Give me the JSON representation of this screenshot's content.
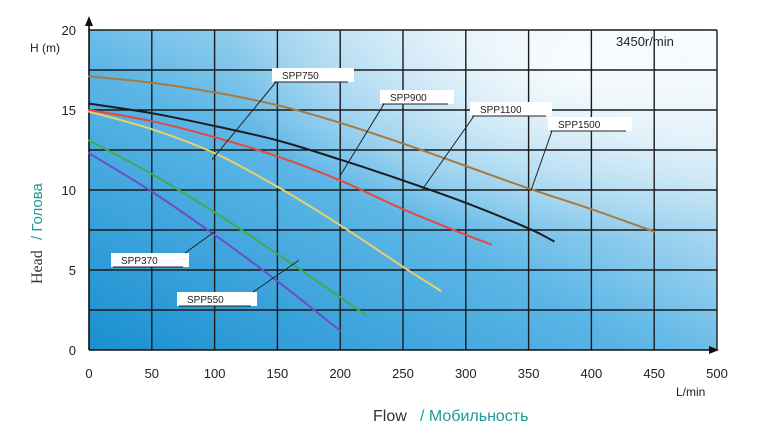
{
  "chart_data": {
    "type": "line",
    "title": "",
    "speed_label": "3450r/min",
    "y_axis": {
      "label_en": "Head",
      "label_ru": "/ Голова",
      "unit": "H (m)",
      "range": [
        0,
        20
      ],
      "ticks": [
        "0",
        "5",
        "10",
        "15",
        "20"
      ]
    },
    "x_axis": {
      "label_en": "Flow",
      "label_ru": "/ Мобильность",
      "unit": "L/min",
      "range": [
        0,
        500
      ],
      "ticks": [
        "0",
        "50",
        "100",
        "150",
        "200",
        "250",
        "300",
        "350",
        "400",
        "450",
        "500"
      ]
    },
    "grid": true,
    "series": [
      {
        "name": "SPP370",
        "color": "#6b4fc8",
        "x": [
          0,
          50,
          100,
          150,
          200
        ],
        "y": [
          12.3,
          9.9,
          7.2,
          4.3,
          1.2
        ]
      },
      {
        "name": "SPP550",
        "color": "#3cae4e",
        "x": [
          0,
          50,
          100,
          150,
          200,
          220
        ],
        "y": [
          13.1,
          11.0,
          8.6,
          6.0,
          3.3,
          2.2
        ]
      },
      {
        "name": "SPP750",
        "color": "#e6d16a",
        "x": [
          0,
          50,
          100,
          150,
          200,
          250,
          280
        ],
        "y": [
          14.9,
          13.8,
          12.3,
          10.2,
          7.8,
          5.2,
          3.7
        ]
      },
      {
        "name": "SPP900",
        "color": "#e8473d",
        "x": [
          0,
          50,
          100,
          150,
          200,
          250,
          300,
          320
        ],
        "y": [
          15.0,
          14.3,
          13.3,
          12.1,
          10.6,
          8.8,
          7.2,
          6.6
        ]
      },
      {
        "name": "SPP1100",
        "color": "#1c1c22",
        "x": [
          0,
          50,
          100,
          150,
          200,
          250,
          300,
          350,
          370
        ],
        "y": [
          15.4,
          14.8,
          14.0,
          13.1,
          11.9,
          10.6,
          9.2,
          7.6,
          6.8
        ]
      },
      {
        "name": "SPP1500",
        "color": "#a87a3e",
        "x": [
          0,
          50,
          100,
          150,
          200,
          250,
          300,
          350,
          400,
          450
        ],
        "y": [
          17.1,
          16.7,
          16.1,
          15.3,
          14.2,
          12.9,
          11.5,
          10.1,
          8.8,
          7.4
        ]
      }
    ],
    "callouts": [
      {
        "series": "SPP750",
        "text": "SPP750",
        "at": [
          98,
          11.9
        ]
      },
      {
        "series": "SPP900",
        "text": "SPP900",
        "at": [
          200,
          10.9
        ]
      },
      {
        "series": "SPP1100",
        "text": "SPP1100",
        "at": [
          265,
          10.0
        ]
      },
      {
        "series": "SPP1500",
        "text": "SPP1500",
        "at": [
          352,
          10.0
        ]
      },
      {
        "series": "SPP370",
        "text": "SPP370",
        "at": [
          100,
          7.4
        ]
      },
      {
        "series": "SPP550",
        "text": "SPP550",
        "at": [
          167,
          5.6
        ]
      }
    ]
  }
}
